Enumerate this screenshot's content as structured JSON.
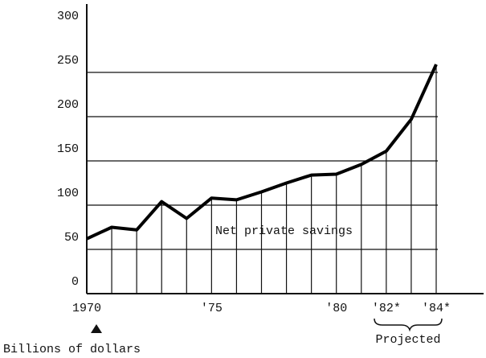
{
  "chart_data": {
    "type": "line",
    "x": [
      1970,
      1971,
      1972,
      1973,
      1974,
      1975,
      1976,
      1977,
      1978,
      1979,
      1980,
      1981,
      1982,
      1983,
      1984
    ],
    "series": [
      {
        "name": "Net private savings",
        "color": "#000000",
        "values": [
          62,
          75,
          72,
          104,
          85,
          108,
          106,
          115,
          125,
          134,
          135,
          146,
          161,
          197,
          259
        ]
      }
    ],
    "xlim": [
      1970,
      1984
    ],
    "xticks": [
      {
        "value": 1970,
        "label": "1970"
      },
      {
        "value": 1975,
        "label": "'75"
      },
      {
        "value": 1980,
        "label": "'80"
      },
      {
        "value": 1982,
        "label": "'82*"
      },
      {
        "value": 1984,
        "label": "'84*"
      }
    ],
    "ylim": [
      0,
      300
    ],
    "yticks": [
      0,
      50,
      100,
      150,
      200,
      250,
      300
    ],
    "grid": true,
    "annotations": [
      "Projected"
    ],
    "ylabel": "Billions of dollars"
  }
}
